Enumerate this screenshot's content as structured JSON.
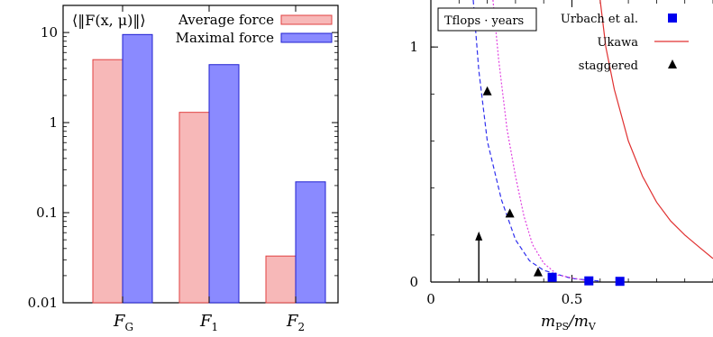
{
  "chart_data": [
    {
      "type": "bar",
      "title": "⟨‖F(x, μ)‖⟩",
      "y_scale": "log",
      "ylim": [
        0.01,
        20
      ],
      "y_ticks": [
        "0.01",
        "0.1",
        "1",
        "10"
      ],
      "y_tick_values": [
        0.01,
        0.1,
        1,
        10
      ],
      "categories": [
        {
          "main": "F",
          "sub": "G"
        },
        {
          "main": "F",
          "sub": "1"
        },
        {
          "main": "F",
          "sub": "2"
        }
      ],
      "series": [
        {
          "name": "Average force",
          "values": [
            5.0,
            1.3,
            0.033
          ],
          "color": "#f7b8b8",
          "stroke": "#e04040"
        },
        {
          "name": "Maximal force",
          "values": [
            9.5,
            4.4,
            0.22
          ],
          "color": "#8a8aff",
          "stroke": "#2020d0"
        }
      ],
      "legend_position": "top-right"
    },
    {
      "type": "scatter",
      "annotation": "Tflops · years",
      "xlabel": {
        "main": "m",
        "sub_top": "PS",
        "slash": "/m",
        "sub_bottom": "V"
      },
      "xlim": [
        0,
        1
      ],
      "ylim": [
        0,
        1.2
      ],
      "x_ticks": [
        "0",
        "0.5"
      ],
      "x_tick_values": [
        0,
        0.5
      ],
      "y_ticks": [
        "0",
        "1"
      ],
      "y_tick_values": [
        0,
        1
      ],
      "series": [
        {
          "name": "Urbach et al.",
          "marker": "square",
          "color": "#0000ee",
          "x": [
            0.43,
            0.56,
            0.67
          ],
          "y": [
            0.02,
            0.005,
            0.003
          ]
        },
        {
          "name": "Ukawa",
          "marker": "line",
          "color": "#e03030",
          "style": "solid",
          "x": [
            0.6,
            0.62,
            0.65,
            0.7,
            0.75,
            0.8,
            0.85,
            0.9,
            0.95,
            1.0
          ],
          "y": [
            1.2,
            1.0,
            0.82,
            0.6,
            0.45,
            0.34,
            0.26,
            0.2,
            0.15,
            0.1
          ]
        },
        {
          "name": "staggered",
          "marker": "triangle",
          "color": "#000000",
          "x": [
            0.2,
            0.28,
            0.38
          ],
          "y": [
            0.81,
            0.29,
            0.04
          ]
        },
        {
          "name": "",
          "marker": "line",
          "color": "#3030ee",
          "style": "dashed",
          "x": [
            0.15,
            0.17,
            0.2,
            0.25,
            0.3,
            0.35,
            0.4,
            0.5,
            0.6
          ],
          "y": [
            1.2,
            0.9,
            0.6,
            0.35,
            0.18,
            0.09,
            0.05,
            0.015,
            0.004
          ]
        },
        {
          "name": "",
          "marker": "line",
          "color": "#e040e0",
          "style": "dotted",
          "x": [
            0.22,
            0.24,
            0.27,
            0.3,
            0.33,
            0.36,
            0.4,
            0.45,
            0.55
          ],
          "y": [
            1.2,
            0.95,
            0.65,
            0.45,
            0.28,
            0.16,
            0.08,
            0.03,
            0.006
          ]
        }
      ],
      "arrow": {
        "x": 0.17,
        "y_from": 0.0,
        "y_to": 0.2
      },
      "legend_position": "top-right"
    }
  ]
}
